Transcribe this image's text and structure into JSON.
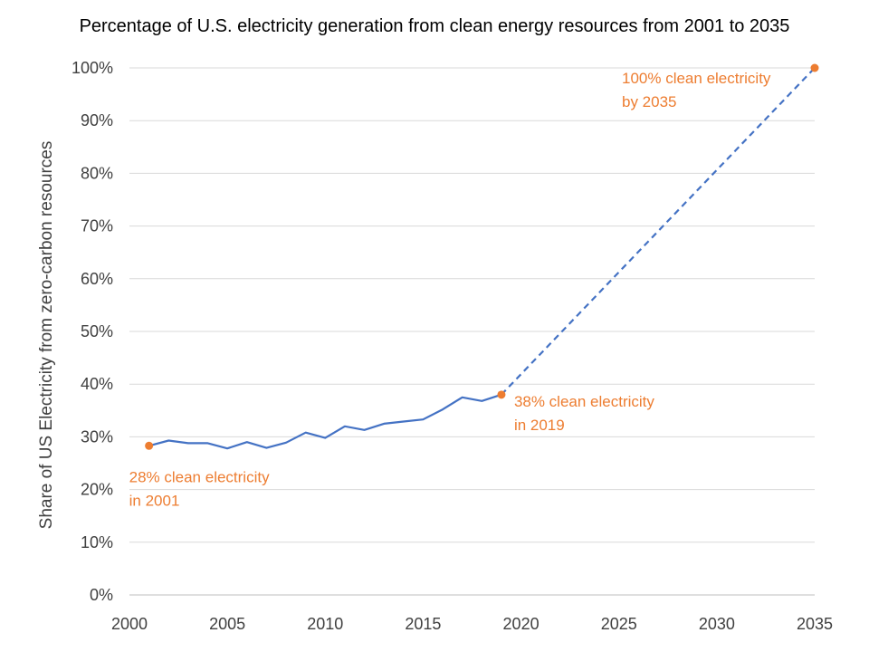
{
  "chart_data": {
    "type": "line",
    "title": "Percentage of U.S. electricity generation from clean energy resources from 2001 to 2035",
    "xlabel": "",
    "ylabel": "Share of US Electricity from zero-carbon resources",
    "xlim": [
      2000,
      2035
    ],
    "ylim": [
      0,
      100
    ],
    "x_ticks": [
      2000,
      2005,
      2010,
      2015,
      2020,
      2025,
      2030,
      2035
    ],
    "y_ticks": [
      "0%",
      "10%",
      "20%",
      "30%",
      "40%",
      "50%",
      "60%",
      "70%",
      "80%",
      "90%",
      "100%"
    ],
    "y_tick_values": [
      0,
      10,
      20,
      30,
      40,
      50,
      60,
      70,
      80,
      90,
      100
    ],
    "grid": "horizontal",
    "series": [
      {
        "style": "solid",
        "color": "#4472C4",
        "x": [
          2001,
          2002,
          2003,
          2004,
          2005,
          2006,
          2007,
          2008,
          2009,
          2010,
          2011,
          2012,
          2013,
          2014,
          2015,
          2016,
          2017,
          2018,
          2019
        ],
        "y": [
          28.3,
          29.3,
          28.8,
          28.8,
          27.8,
          29.0,
          27.9,
          28.9,
          30.8,
          29.8,
          32.0,
          31.3,
          32.5,
          32.9,
          33.3,
          35.2,
          37.5,
          36.8,
          38.0
        ]
      },
      {
        "style": "dashed",
        "color": "#4472C4",
        "x": [
          2019,
          2035
        ],
        "y": [
          38.0,
          100.0
        ]
      }
    ],
    "highlight_points": [
      {
        "x": 2001,
        "y": 28.3,
        "color": "#ED7D31"
      },
      {
        "x": 2019,
        "y": 38.0,
        "color": "#ED7D31"
      },
      {
        "x": 2035,
        "y": 100.0,
        "color": "#ED7D31"
      }
    ],
    "annotations": [
      {
        "lines": [
          "28% clean electricity",
          "in 2001"
        ],
        "color": "#ED7D31",
        "anchor_x": 2001,
        "anchor_y": 28.3
      },
      {
        "lines": [
          "38% clean electricity",
          "in 2019"
        ],
        "color": "#ED7D31",
        "anchor_x": 2019,
        "anchor_y": 38.0
      },
      {
        "lines": [
          "100% clean electricity",
          "by 2035"
        ],
        "color": "#ED7D31",
        "anchor_x": 2035,
        "anchor_y": 100.0
      }
    ],
    "colors": {
      "line": "#4472C4",
      "marker": "#ED7D31",
      "grid": "#D9D9D9",
      "tick_text": "#404040"
    }
  }
}
